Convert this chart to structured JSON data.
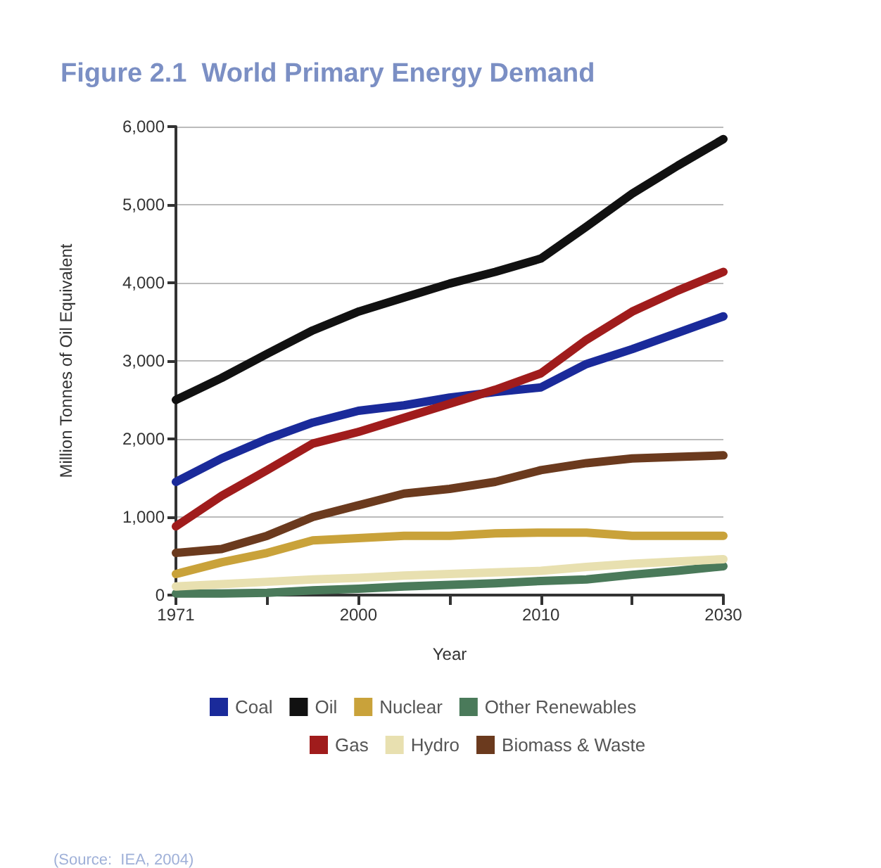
{
  "chart_data": {
    "type": "line",
    "title": "Figure 2.1  World Primary Energy Demand",
    "xlabel": "Year",
    "ylabel": "Million Tonnes of Oil Equivalent",
    "annotations": [
      "(Source:  IEA, 2004)"
    ],
    "categories": [
      "1971",
      null,
      null,
      null,
      "2000",
      null,
      null,
      null,
      "2010",
      null,
      null,
      null,
      "2030"
    ],
    "ylim": [
      0,
      6000
    ],
    "yticks": [
      {
        "value": 0,
        "label": "0"
      },
      {
        "value": 1000,
        "label": "1,000"
      },
      {
        "value": 2000,
        "label": "2,000"
      },
      {
        "value": 3000,
        "label": "3,000"
      },
      {
        "value": 4000,
        "label": "4,000"
      },
      {
        "value": 5000,
        "label": "5,000"
      },
      {
        "value": 6000,
        "label": "6,000"
      }
    ],
    "grid": "y",
    "legend": "bottom",
    "marker": "none",
    "line_style": "solid",
    "series": [
      {
        "name": "Coal",
        "color": "#1a2a9a",
        "values": [
          1450,
          1750,
          2000,
          2210,
          2360,
          2430,
          2530,
          2600,
          2660,
          2960,
          3150,
          3360,
          3570
        ]
      },
      {
        "name": "Oil",
        "color": "#111111",
        "values": [
          2500,
          2780,
          3090,
          3390,
          3630,
          3810,
          3990,
          4140,
          4310,
          4720,
          5140,
          5500,
          5840
        ]
      },
      {
        "name": "Nuclear",
        "color": "#c9a23a",
        "values": [
          270,
          420,
          540,
          700,
          730,
          760,
          760,
          790,
          800,
          800,
          760,
          760,
          760
        ]
      },
      {
        "name": "Other Renewables",
        "color": "#4a7a5a",
        "values": [
          20,
          20,
          30,
          60,
          80,
          110,
          130,
          150,
          180,
          200,
          260,
          310,
          370
        ]
      },
      {
        "name": "Gas",
        "color": "#a01c1c",
        "values": [
          880,
          1270,
          1600,
          1940,
          2090,
          2270,
          2450,
          2630,
          2840,
          3270,
          3630,
          3900,
          4140
        ]
      },
      {
        "name": "Hydro",
        "color": "#e8e0b0",
        "values": [
          110,
          140,
          170,
          200,
          220,
          250,
          270,
          290,
          310,
          360,
          400,
          430,
          460
        ]
      },
      {
        "name": "Biomass & Waste",
        "color": "#6b3a1e",
        "values": [
          540,
          590,
          760,
          1000,
          1150,
          1300,
          1360,
          1450,
          1600,
          1690,
          1750,
          1770,
          1790
        ]
      }
    ]
  }
}
